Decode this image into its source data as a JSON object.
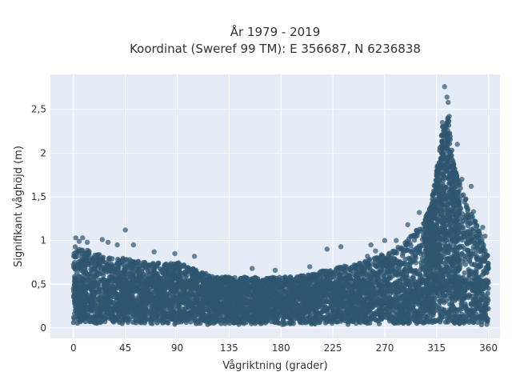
{
  "chart_data": {
    "type": "scatter",
    "title_line1": "År 1979 - 2019",
    "title_line2": "Koordinat (Sweref 99 TM): E 356687, N 6236838",
    "xlabel": "Vågriktning (grader)",
    "ylabel": "Signifikant våghöjd (m)",
    "xlim": [
      -20,
      370
    ],
    "ylim": [
      -0.12,
      2.9
    ],
    "xticks": [
      0,
      45,
      90,
      135,
      180,
      225,
      270,
      315,
      360
    ],
    "xtick_labels": [
      "0",
      "45",
      "90",
      "135",
      "180",
      "225",
      "270",
      "315",
      "360"
    ],
    "yticks": [
      0,
      0.5,
      1,
      1.5,
      2,
      2.5
    ],
    "ytick_labels": [
      "0",
      "0,5",
      "1",
      "1,5",
      "2",
      "2,5"
    ],
    "grid": true,
    "marker_color": "#2e5670",
    "plot_background": "#e5ecf6",
    "envelope": {
      "direction": [
        0,
        10,
        20,
        30,
        45,
        60,
        80,
        90,
        100,
        120,
        135,
        150,
        180,
        200,
        225,
        250,
        270,
        285,
        300,
        310,
        315,
        320,
        325,
        330,
        340,
        350,
        360
      ],
      "upper_height": [
        0.95,
        0.9,
        0.85,
        0.8,
        0.8,
        0.75,
        0.75,
        0.75,
        0.7,
        0.6,
        0.58,
        0.58,
        0.58,
        0.6,
        0.68,
        0.75,
        0.85,
        0.95,
        1.15,
        1.4,
        1.8,
        2.3,
        2.45,
        1.85,
        1.5,
        1.2,
        0.8
      ]
    },
    "outliers": [
      {
        "x": 322,
        "y": 2.76
      },
      {
        "x": 324,
        "y": 2.64
      },
      {
        "x": 325,
        "y": 2.58
      },
      {
        "x": 320,
        "y": 2.35
      },
      {
        "x": 326,
        "y": 2.42
      },
      {
        "x": 333,
        "y": 2.1
      },
      {
        "x": 337,
        "y": 1.7
      },
      {
        "x": 345,
        "y": 1.62
      },
      {
        "x": 347,
        "y": 1.33
      },
      {
        "x": 355,
        "y": 1.15
      },
      {
        "x": 357,
        "y": 1.05
      },
      {
        "x": 300,
        "y": 1.32
      },
      {
        "x": 290,
        "y": 1.18
      },
      {
        "x": 280,
        "y": 1.0
      },
      {
        "x": 270,
        "y": 1.0
      },
      {
        "x": 258,
        "y": 0.95
      },
      {
        "x": 232,
        "y": 0.93
      },
      {
        "x": 220,
        "y": 0.9
      },
      {
        "x": 45,
        "y": 1.12
      },
      {
        "x": 2,
        "y": 1.03
      },
      {
        "x": 8,
        "y": 1.03
      },
      {
        "x": 25,
        "y": 1.01
      },
      {
        "x": 38,
        "y": 0.95
      },
      {
        "x": 52,
        "y": 0.95
      },
      {
        "x": 5,
        "y": 0.99
      },
      {
        "x": 12,
        "y": 0.98
      },
      {
        "x": 30,
        "y": 0.98
      },
      {
        "x": 70,
        "y": 0.87
      },
      {
        "x": 88,
        "y": 0.85
      },
      {
        "x": 105,
        "y": 0.82
      },
      {
        "x": 155,
        "y": 0.68
      },
      {
        "x": 175,
        "y": 0.66
      },
      {
        "x": 205,
        "y": 0.7
      },
      {
        "x": 255,
        "y": 0.82
      },
      {
        "x": 262,
        "y": 0.88
      }
    ]
  }
}
